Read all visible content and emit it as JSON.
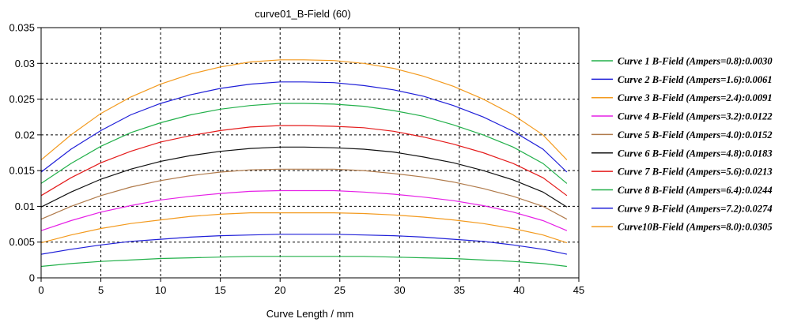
{
  "chart_data": {
    "type": "line",
    "title": "curve01_B-Field (60)",
    "xlabel": "Curve Length / mm",
    "ylabel": "",
    "xlim": [
      0,
      45
    ],
    "ylim": [
      0,
      0.035
    ],
    "xticks": [
      "0",
      "5",
      "10",
      "15",
      "20",
      "25",
      "30",
      "35",
      "40",
      "45"
    ],
    "yticks": [
      "0",
      "0.005",
      "0.01",
      "0.015",
      "0.02",
      "0.025",
      "0.03",
      "0.035"
    ],
    "grid": true,
    "legend_position": "right",
    "x": [
      0,
      2.5,
      5,
      7.5,
      10,
      12.5,
      15,
      17.5,
      20,
      22,
      24.5,
      27,
      29.5,
      32,
      34.5,
      37,
      39.5,
      42,
      44
    ],
    "series": [
      {
        "name": "Curve 1 B-Field (Ampers=0.8):0.0030",
        "color": "#22b04a",
        "values": [
          0.0016,
          0.002,
          0.0023,
          0.0025,
          0.0027,
          0.0028,
          0.0029,
          0.003,
          0.003,
          0.003,
          0.003,
          0.003,
          0.0029,
          0.0028,
          0.0027,
          0.0025,
          0.0023,
          0.002,
          0.0016
        ]
      },
      {
        "name": "Curve 2 B-Field (Ampers=1.6):0.0061",
        "color": "#1f1fd8",
        "values": [
          0.0033,
          0.004,
          0.0046,
          0.0051,
          0.0054,
          0.0057,
          0.0059,
          0.006,
          0.0061,
          0.0061,
          0.0061,
          0.006,
          0.0059,
          0.0057,
          0.0054,
          0.0051,
          0.0046,
          0.004,
          0.0033
        ]
      },
      {
        "name": "Curve 3 B-Field (Ampers=2.4):0.0091",
        "color": "#f39a1e",
        "values": [
          0.0049,
          0.006,
          0.0069,
          0.0076,
          0.0081,
          0.0086,
          0.0089,
          0.0091,
          0.0091,
          0.0091,
          0.0091,
          0.009,
          0.0088,
          0.0085,
          0.0081,
          0.0076,
          0.0069,
          0.006,
          0.0049
        ]
      },
      {
        "name": "Curve 4 B-Field (Ampers=3.2):0.0122",
        "color": "#e620e6",
        "values": [
          0.0066,
          0.008,
          0.0092,
          0.0101,
          0.0109,
          0.0114,
          0.0118,
          0.0121,
          0.0122,
          0.0122,
          0.0122,
          0.012,
          0.0117,
          0.0113,
          0.0108,
          0.0101,
          0.0092,
          0.008,
          0.0066
        ]
      },
      {
        "name": "Curve 5 B-Field (Ampers=4.0):0.0152",
        "color": "#b07a4a",
        "values": [
          0.0082,
          0.01,
          0.0115,
          0.0127,
          0.0136,
          0.0143,
          0.0148,
          0.0151,
          0.0152,
          0.0152,
          0.0152,
          0.015,
          0.0146,
          0.0141,
          0.0134,
          0.0125,
          0.0114,
          0.01,
          0.0082
        ]
      },
      {
        "name": "Curve 6 B-Field (Ampers=4.8):0.0183",
        "color": "#111111",
        "values": [
          0.0099,
          0.012,
          0.0138,
          0.0152,
          0.0163,
          0.0171,
          0.0177,
          0.0181,
          0.0183,
          0.0183,
          0.0182,
          0.018,
          0.0176,
          0.0169,
          0.0161,
          0.015,
          0.0137,
          0.012,
          0.0099
        ]
      },
      {
        "name": "Curve 7 B-Field (Ampers=5.6):0.0213",
        "color": "#e41b1b",
        "values": [
          0.0115,
          0.014,
          0.0161,
          0.0177,
          0.019,
          0.0199,
          0.0206,
          0.0211,
          0.0213,
          0.0213,
          0.0212,
          0.021,
          0.0205,
          0.0197,
          0.0187,
          0.0175,
          0.016,
          0.014,
          0.0115
        ]
      },
      {
        "name": "Curve 8 B-Field (Ampers=6.4):0.0244",
        "color": "#22b04a",
        "values": [
          0.0132,
          0.016,
          0.0184,
          0.0203,
          0.0217,
          0.0228,
          0.0236,
          0.0241,
          0.0244,
          0.0244,
          0.0243,
          0.024,
          0.0234,
          0.0226,
          0.0214,
          0.02,
          0.0183,
          0.016,
          0.0132
        ]
      },
      {
        "name": "Curve 9 B-Field (Ampers=7.2):0.0274",
        "color": "#1f1fd8",
        "values": [
          0.0148,
          0.018,
          0.0206,
          0.0228,
          0.0244,
          0.0256,
          0.0265,
          0.0271,
          0.0274,
          0.0274,
          0.0273,
          0.0269,
          0.0263,
          0.0254,
          0.0241,
          0.0225,
          0.0205,
          0.018,
          0.0148
        ]
      },
      {
        "name": "Curve10B-Field (Ampers=8.0):0.0305",
        "color": "#f39a1e",
        "values": [
          0.0165,
          0.02,
          0.023,
          0.0253,
          0.0271,
          0.0285,
          0.0295,
          0.0302,
          0.0305,
          0.0305,
          0.0304,
          0.03,
          0.0293,
          0.0282,
          0.0268,
          0.025,
          0.0228,
          0.02,
          0.0165
        ]
      }
    ]
  }
}
